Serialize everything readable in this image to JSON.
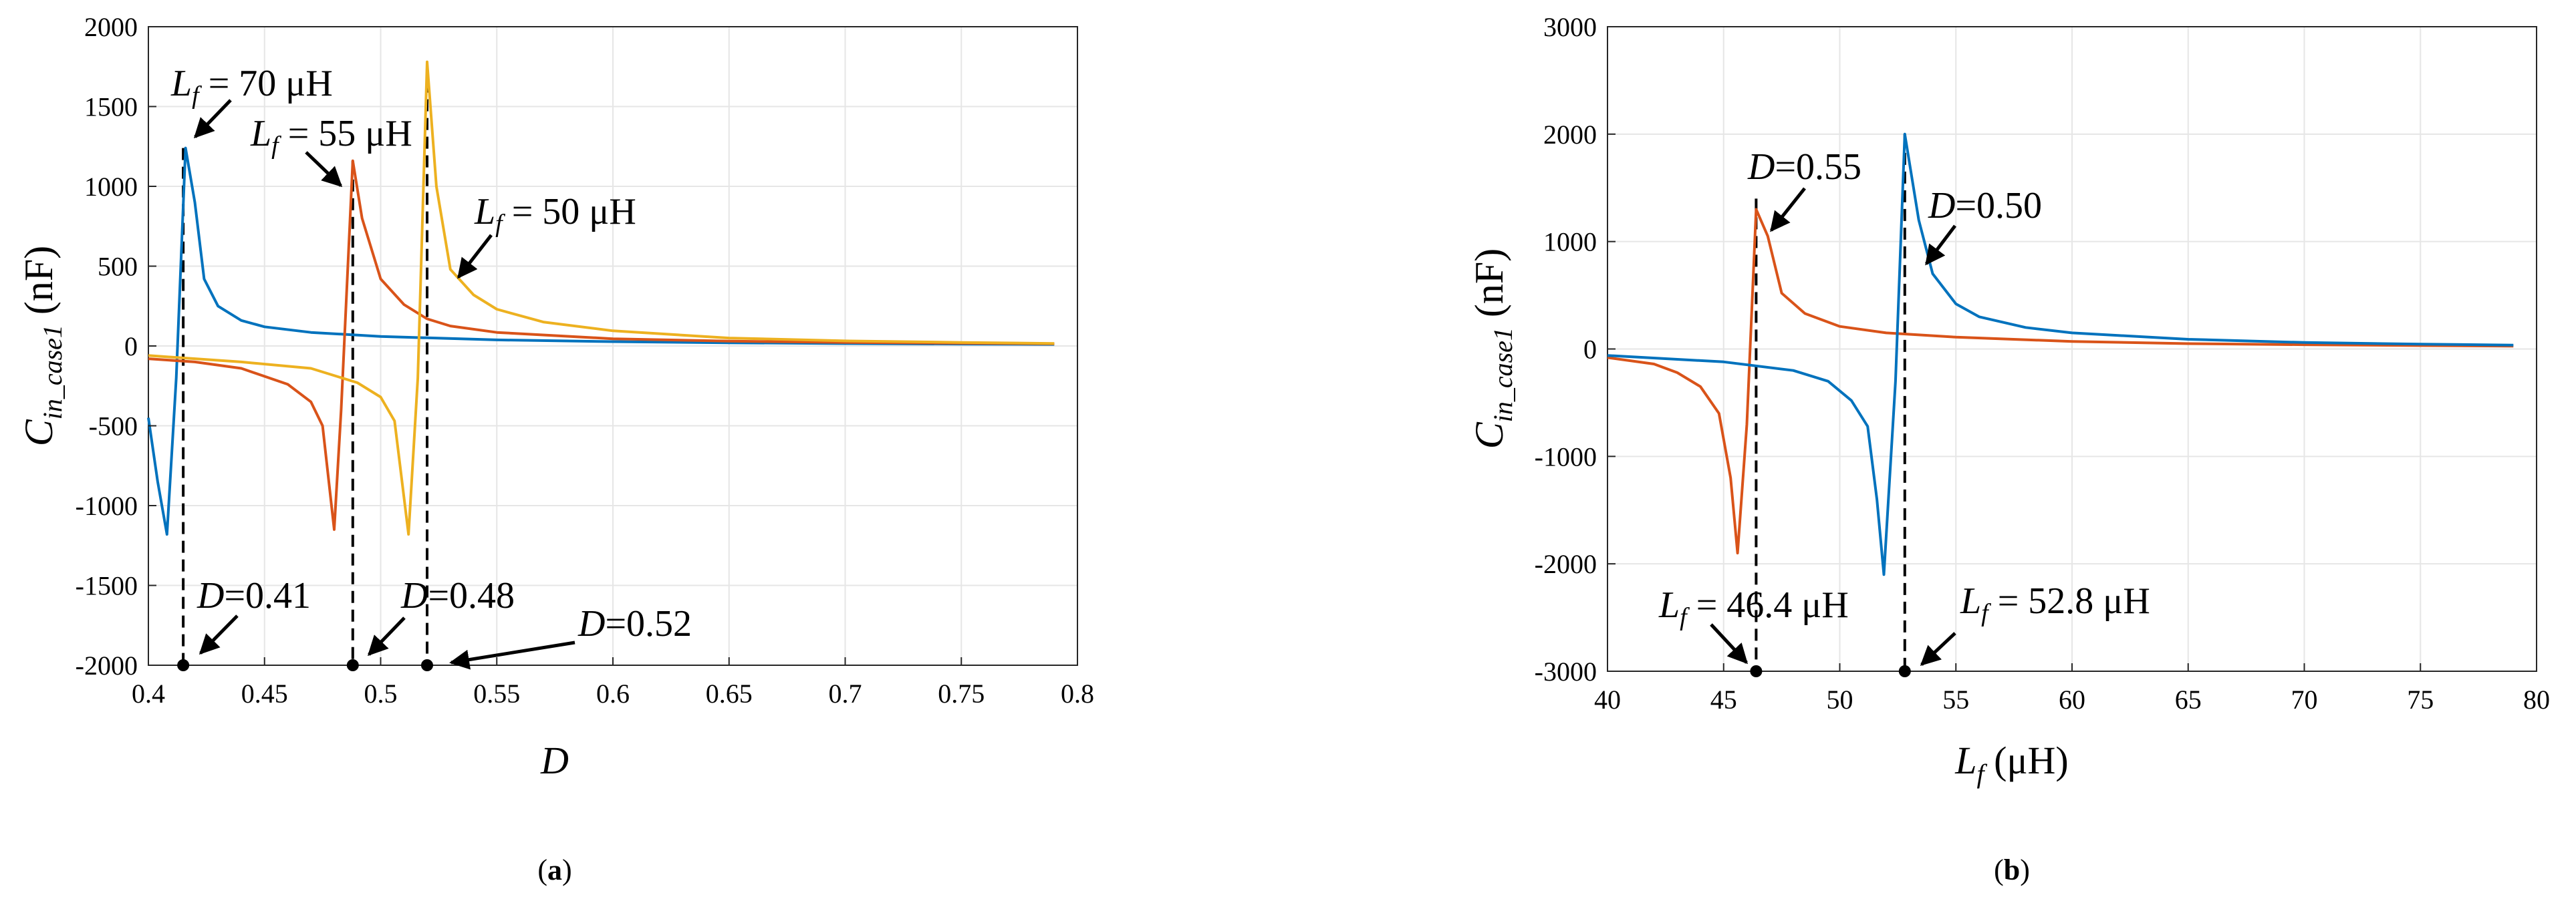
{
  "colors": {
    "blue": "#0072BD",
    "orange": "#D95319",
    "yellow": "#EDB120",
    "grid": "#e6e6e6",
    "axis": "#262626"
  },
  "chart_data": [
    {
      "type": "line",
      "panel_label": {
        "prefix": "(",
        "letter": "a",
        "suffix": ")"
      },
      "xlabel": "D",
      "ylabel": {
        "main": "C",
        "sub": "in_case1",
        "unit": " (nF)"
      },
      "xlim": [
        0.4,
        0.8
      ],
      "ylim": [
        -2000,
        2000
      ],
      "xticks": [
        0.4,
        0.45,
        0.5,
        0.55,
        0.6,
        0.65,
        0.7,
        0.75,
        0.8
      ],
      "xtick_labels": [
        "0.4",
        "0.45",
        "0.5",
        "0.55",
        "0.6",
        "0.65",
        "0.7",
        "0.75",
        "0.8"
      ],
      "yticks": [
        -2000,
        -1500,
        -1000,
        -500,
        0,
        500,
        1000,
        1500,
        2000
      ],
      "ytick_labels": [
        "-2000",
        "-1500",
        "-1000",
        "-500",
        "0",
        "500",
        "1000",
        "1500",
        "2000"
      ],
      "grid": true,
      "series": [
        {
          "color": "blue",
          "x": [
            0.4,
            0.404,
            0.408,
            0.412,
            0.416,
            0.42,
            0.424,
            0.43,
            0.44,
            0.45,
            0.47,
            0.5,
            0.55,
            0.6,
            0.65,
            0.7,
            0.75,
            0.79
          ],
          "y": [
            -450,
            -850,
            -1180,
            -200,
            1240,
            900,
            420,
            250,
            160,
            120,
            85,
            60,
            38,
            27,
            20,
            15,
            12,
            10
          ]
        },
        {
          "color": "orange",
          "x": [
            0.4,
            0.42,
            0.44,
            0.46,
            0.47,
            0.475,
            0.48,
            0.483,
            0.488,
            0.492,
            0.5,
            0.51,
            0.52,
            0.53,
            0.55,
            0.6,
            0.65,
            0.7,
            0.75,
            0.79
          ],
          "y": [
            -80,
            -100,
            -140,
            -240,
            -350,
            -500,
            -1150,
            -400,
            1160,
            800,
            420,
            260,
            170,
            125,
            85,
            45,
            30,
            22,
            17,
            14
          ]
        },
        {
          "color": "yellow",
          "x": [
            0.4,
            0.44,
            0.47,
            0.49,
            0.5,
            0.506,
            0.512,
            0.516,
            0.52,
            0.524,
            0.53,
            0.54,
            0.55,
            0.57,
            0.6,
            0.65,
            0.7,
            0.75,
            0.79
          ],
          "y": [
            -60,
            -100,
            -140,
            -230,
            -320,
            -470,
            -1180,
            -200,
            1780,
            1000,
            480,
            320,
            230,
            150,
            95,
            50,
            32,
            22,
            16
          ]
        }
      ],
      "reference_lines": [
        {
          "x": 0.415,
          "y_top": 1240
        },
        {
          "x": 0.488,
          "y_top": 1160
        },
        {
          "x": 0.52,
          "y_top": 1780
        }
      ],
      "annotations": [
        {
          "italic": "L",
          "sub": "f",
          "rest": " = 70 μH"
        },
        {
          "italic": "L",
          "sub": "f",
          "rest": " = 55 μH"
        },
        {
          "italic": "L",
          "sub": "f",
          "rest": " = 50 μH"
        },
        {
          "italic": "D",
          "sub": "",
          "rest": "=0.41"
        },
        {
          "italic": "D",
          "sub": "",
          "rest": "=0.48"
        },
        {
          "italic": "D",
          "sub": "",
          "rest": "=0.52"
        }
      ]
    },
    {
      "type": "line",
      "panel_label": {
        "prefix": "(",
        "letter": "b",
        "suffix": ")"
      },
      "xlabel": {
        "main": "L",
        "sub": "f",
        "unit": " (μH)"
      },
      "ylabel": {
        "main": "C",
        "sub": "in_case1",
        "unit": " (nF)"
      },
      "xlim": [
        40,
        80
      ],
      "ylim": [
        -3000,
        3000
      ],
      "xticks": [
        40,
        45,
        50,
        55,
        60,
        65,
        70,
        75,
        80
      ],
      "xtick_labels": [
        "40",
        "45",
        "50",
        "55",
        "60",
        "65",
        "70",
        "75",
        "80"
      ],
      "yticks": [
        -3000,
        -2000,
        -1000,
        0,
        1000,
        2000,
        3000
      ],
      "ytick_labels": [
        "-3000",
        "-2000",
        "-1000",
        "0",
        "1000",
        "2000",
        "3000"
      ],
      "grid": true,
      "series": [
        {
          "color": "orange",
          "x": [
            40,
            42,
            43,
            44,
            44.8,
            45.3,
            45.6,
            46,
            46.4,
            46.9,
            47.5,
            48.5,
            50,
            52,
            55,
            60,
            65,
            70,
            75,
            79
          ],
          "y": [
            -80,
            -140,
            -220,
            -350,
            -600,
            -1200,
            -1900,
            -700,
            1300,
            1050,
            520,
            330,
            210,
            150,
            110,
            70,
            50,
            40,
            32,
            26
          ]
        },
        {
          "color": "blue",
          "x": [
            40,
            45,
            48,
            49.5,
            50.5,
            51.2,
            51.6,
            51.9,
            52.4,
            52.8,
            53.4,
            54,
            55,
            56,
            58,
            60,
            65,
            70,
            75,
            79
          ],
          "y": [
            -60,
            -120,
            -200,
            -300,
            -480,
            -720,
            -1400,
            -2100,
            -300,
            2000,
            1200,
            700,
            420,
            300,
            200,
            150,
            90,
            60,
            45,
            36
          ]
        }
      ],
      "reference_lines": [
        {
          "x": 46.4,
          "y_top": 1400
        },
        {
          "x": 52.8,
          "y_top": 2000
        }
      ],
      "annotations": [
        {
          "italic": "D",
          "sub": "",
          "rest": "=0.55"
        },
        {
          "italic": "D",
          "sub": "",
          "rest": "=0.50"
        },
        {
          "italic": "L",
          "sub": "f",
          "rest": " = 46.4 μH"
        },
        {
          "italic": "L",
          "sub": "f",
          "rest": " = 52.8 μH"
        }
      ]
    }
  ]
}
